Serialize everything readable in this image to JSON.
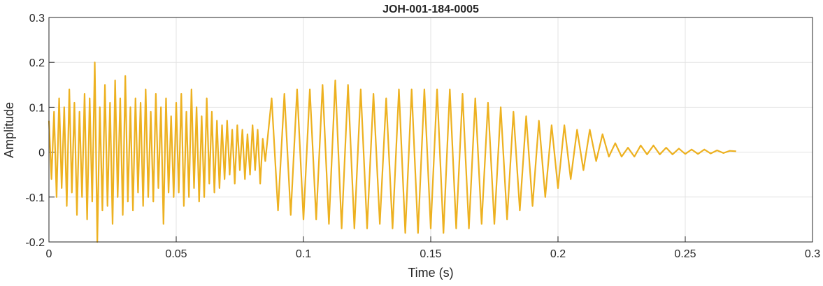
{
  "chart_data": {
    "type": "line",
    "title": "JOH-001-184-0005",
    "x_label": "Time (s)",
    "y_label": "Amplitude",
    "x": [
      0,
      0.001,
      0.002,
      0.003,
      0.004,
      0.005,
      0.006,
      0.007,
      0.008,
      0.009,
      0.01,
      0.011,
      0.012,
      0.013,
      0.014,
      0.015,
      0.016,
      0.017,
      0.018,
      0.019,
      0.02,
      0.021,
      0.022,
      0.023,
      0.024,
      0.025,
      0.026,
      0.027,
      0.028,
      0.029,
      0.03,
      0.031,
      0.032,
      0.033,
      0.034,
      0.035,
      0.036,
      0.037,
      0.038,
      0.039,
      0.04,
      0.041,
      0.042,
      0.043,
      0.044,
      0.045,
      0.046,
      0.047,
      0.048,
      0.049,
      0.05,
      0.051,
      0.052,
      0.053,
      0.054,
      0.055,
      0.056,
      0.057,
      0.058,
      0.059,
      0.06,
      0.061,
      0.062,
      0.063,
      0.064,
      0.065,
      0.066,
      0.067,
      0.068,
      0.069,
      0.07,
      0.071,
      0.072,
      0.073,
      0.074,
      0.075,
      0.076,
      0.077,
      0.078,
      0.079,
      0.08,
      0.081,
      0.082,
      0.083,
      0.084,
      0.085,
      0.0875,
      0.09,
      0.0925,
      0.095,
      0.0975,
      0.1,
      0.1025,
      0.105,
      0.1075,
      0.11,
      0.1125,
      0.115,
      0.1175,
      0.12,
      0.1225,
      0.125,
      0.1275,
      0.13,
      0.1325,
      0.135,
      0.1375,
      0.14,
      0.1425,
      0.145,
      0.1475,
      0.15,
      0.1525,
      0.155,
      0.1575,
      0.16,
      0.1625,
      0.165,
      0.1675,
      0.17,
      0.1725,
      0.175,
      0.1775,
      0.18,
      0.1825,
      0.185,
      0.1875,
      0.19,
      0.1925,
      0.195,
      0.1975,
      0.2,
      0.2025,
      0.205,
      0.2075,
      0.21,
      0.2125,
      0.215,
      0.2175,
      0.22,
      0.2225,
      0.225,
      0.2275,
      0.23,
      0.2325,
      0.235,
      0.2375,
      0.24,
      0.2425,
      0.245,
      0.2475,
      0.25,
      0.2525,
      0.255,
      0.2575,
      0.26,
      0.2625,
      0.265,
      0.2675,
      0.27
    ],
    "series": [
      {
        "color": "#EDB120",
        "values": [
          0.07,
          -0.06,
          0.09,
          -0.1,
          0.12,
          -0.08,
          0.1,
          -0.12,
          0.14,
          -0.09,
          0.11,
          -0.14,
          0.09,
          -0.1,
          0.13,
          -0.15,
          0.12,
          -0.11,
          0.2,
          -0.2,
          0.1,
          -0.13,
          0.15,
          -0.12,
          0.11,
          -0.16,
          0.16,
          -0.1,
          0.12,
          -0.14,
          0.17,
          -0.11,
          0.1,
          -0.13,
          0.12,
          -0.09,
          0.11,
          -0.12,
          0.14,
          -0.1,
          0.09,
          -0.11,
          0.13,
          -0.08,
          0.1,
          -0.16,
          0.12,
          -0.09,
          0.08,
          -0.1,
          0.11,
          -0.09,
          0.13,
          -0.12,
          0.09,
          -0.1,
          0.14,
          -0.08,
          0.1,
          -0.11,
          0.08,
          -0.1,
          0.12,
          -0.07,
          0.09,
          -0.09,
          0.07,
          -0.08,
          0.06,
          -0.06,
          0.07,
          -0.05,
          0.05,
          -0.07,
          0.06,
          -0.04,
          0.05,
          -0.06,
          0.04,
          -0.05,
          0.06,
          -0.04,
          0.05,
          -0.07,
          0.03,
          -0.02,
          0.12,
          -0.13,
          0.13,
          -0.14,
          0.14,
          -0.15,
          0.14,
          -0.15,
          0.15,
          -0.16,
          0.16,
          -0.17,
          0.15,
          -0.17,
          0.14,
          -0.17,
          0.13,
          -0.16,
          0.12,
          -0.17,
          0.14,
          -0.18,
          0.14,
          -0.18,
          0.14,
          -0.17,
          0.14,
          -0.18,
          0.14,
          -0.17,
          0.13,
          -0.17,
          0.12,
          -0.16,
          0.11,
          -0.16,
          0.1,
          -0.15,
          0.09,
          -0.13,
          0.08,
          -0.12,
          0.07,
          -0.1,
          0.06,
          -0.08,
          0.06,
          -0.06,
          0.05,
          -0.04,
          0.05,
          -0.02,
          0.04,
          -0.01,
          0.02,
          -0.01,
          0.01,
          -0.01,
          0.015,
          -0.005,
          0.015,
          -0.005,
          0.01,
          -0.005,
          0.008,
          -0.004,
          0.006,
          -0.004,
          0.006,
          -0.003,
          0.004,
          -0.002,
          0.003,
          0.002
        ]
      }
    ],
    "xlim": [
      0,
      0.3
    ],
    "ylim": [
      -0.2,
      0.3
    ],
    "xticks": [
      0,
      0.05,
      0.1,
      0.15,
      0.2,
      0.25,
      0.3
    ],
    "yticks": [
      -0.2,
      -0.1,
      0,
      0.1,
      0.2,
      0.3
    ],
    "grid": true
  }
}
